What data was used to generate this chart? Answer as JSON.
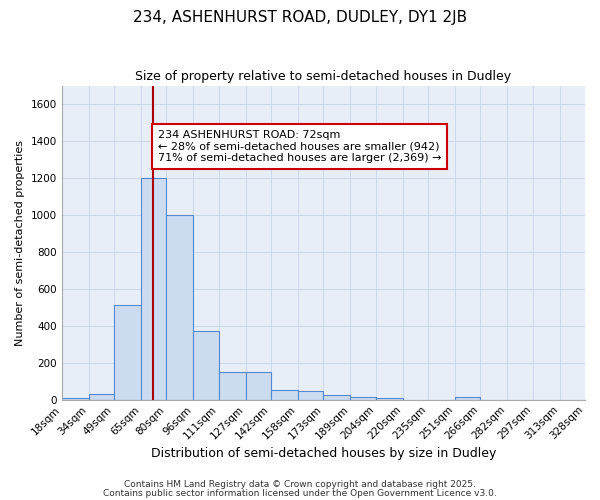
{
  "title1": "234, ASHENHURST ROAD, DUDLEY, DY1 2JB",
  "title2": "Size of property relative to semi-detached houses in Dudley",
  "xlabel": "Distribution of semi-detached houses by size in Dudley",
  "ylabel": "Number of semi-detached properties",
  "bin_edges": [
    18,
    34,
    49,
    65,
    80,
    96,
    111,
    127,
    142,
    158,
    173,
    189,
    204,
    220,
    235,
    251,
    266,
    282,
    297,
    313,
    328
  ],
  "bar_heights": [
    10,
    30,
    510,
    1200,
    1000,
    370,
    150,
    150,
    50,
    45,
    25,
    15,
    10,
    0,
    0,
    15,
    0,
    0,
    0,
    0
  ],
  "bar_color": "#ccdcf0",
  "bar_edge_color": "#5588cc",
  "property_size": 72,
  "vline_color": "#aa0000",
  "annotation_text": "234 ASHENHURST ROAD: 72sqm\n← 28% of semi-detached houses are smaller (942)\n71% of semi-detached houses are larger (2,369) →",
  "annotation_box_facecolor": "#ffffff",
  "annotation_box_edgecolor": "#cc0000",
  "ylim": [
    0,
    1700
  ],
  "yticks": [
    0,
    200,
    400,
    600,
    800,
    1000,
    1200,
    1400,
    1600
  ],
  "bg_color": "#ffffff",
  "plot_bg_color": "#e8eef8",
  "grid_color": "#c8d4e8",
  "footer1": "Contains HM Land Registry data © Crown copyright and database right 2025.",
  "footer2": "Contains public sector information licensed under the Open Government Licence v3.0.",
  "title1_fontsize": 11,
  "title2_fontsize": 9,
  "ylabel_fontsize": 8,
  "xlabel_fontsize": 9,
  "tick_fontsize": 7.5,
  "footer_fontsize": 6.5,
  "annot_fontsize": 8
}
